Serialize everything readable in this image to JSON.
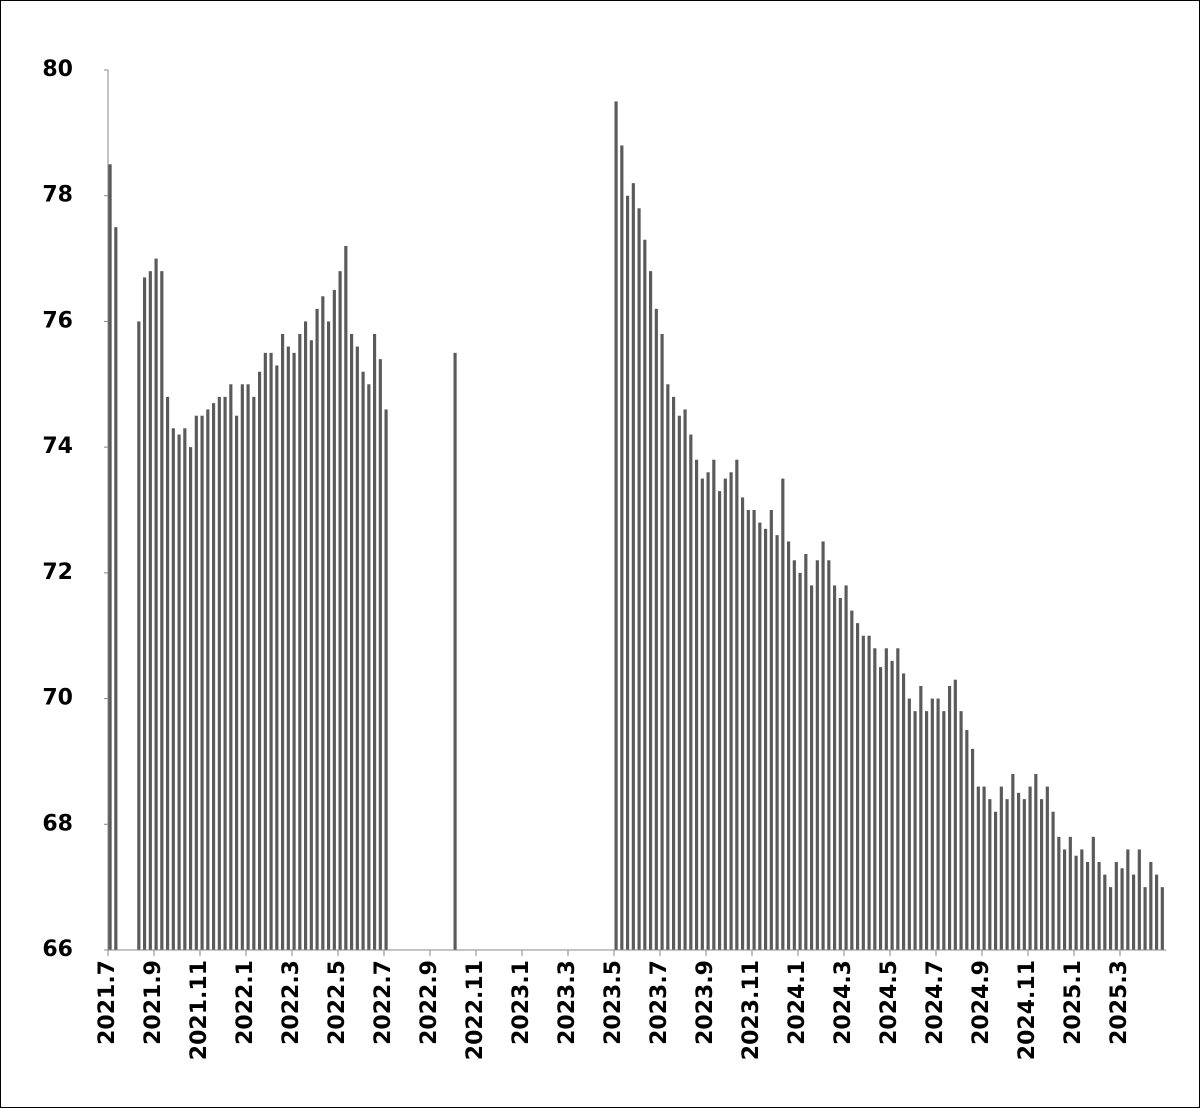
{
  "chart_data": {
    "type": "bar",
    "categories": [
      "2021.7",
      null,
      null,
      null,
      null,
      null,
      null,
      null,
      "2021.9",
      null,
      null,
      null,
      null,
      null,
      null,
      null,
      "2021.11",
      null,
      null,
      null,
      null,
      null,
      null,
      null,
      "2022.1",
      null,
      null,
      null,
      null,
      null,
      null,
      null,
      "2022.3",
      null,
      null,
      null,
      null,
      null,
      null,
      null,
      "2022.5",
      null,
      null,
      null,
      null,
      null,
      null,
      null,
      "2022.7",
      null,
      null,
      null,
      null,
      null,
      null,
      null,
      "2022.9",
      null,
      null,
      null,
      null,
      null,
      null,
      null,
      "2022.11",
      null,
      null,
      null,
      null,
      null,
      null,
      null,
      "2023.1",
      null,
      null,
      null,
      null,
      null,
      null,
      null,
      "2023.3",
      null,
      null,
      null,
      null,
      null,
      null,
      null,
      "2023.5",
      null,
      null,
      null,
      null,
      null,
      null,
      null,
      "2023.7",
      null,
      null,
      null,
      null,
      null,
      null,
      null,
      "2023.9",
      null,
      null,
      null,
      null,
      null,
      null,
      null,
      "2023.11",
      null,
      null,
      null,
      null,
      null,
      null,
      null,
      "2024.1",
      null,
      null,
      null,
      null,
      null,
      null,
      null,
      "2024.3",
      null,
      null,
      null,
      null,
      null,
      null,
      null,
      "2024.5",
      null,
      null,
      null,
      null,
      null,
      null,
      null,
      "2024.7",
      null,
      null,
      null,
      null,
      null,
      null,
      null,
      "2024.9",
      null,
      null,
      null,
      null,
      null,
      null,
      null,
      "2024.11",
      null,
      null,
      null,
      null,
      null,
      null,
      null,
      "2025.1",
      null,
      null,
      null,
      null,
      null,
      null,
      null,
      "2025.3",
      null,
      null,
      null,
      null,
      null,
      null,
      null
    ],
    "values": [
      78.5,
      77.5,
      null,
      null,
      null,
      76.0,
      76.7,
      76.8,
      77.0,
      76.8,
      74.8,
      74.3,
      74.2,
      74.3,
      74.0,
      74.5,
      74.5,
      74.6,
      74.7,
      74.8,
      74.8,
      75.0,
      74.5,
      75.0,
      75.0,
      74.8,
      75.2,
      75.5,
      75.5,
      75.3,
      75.8,
      75.6,
      75.5,
      75.8,
      76.0,
      75.7,
      76.2,
      76.4,
      76.0,
      76.5,
      76.8,
      77.2,
      75.8,
      75.6,
      75.2,
      75.0,
      75.8,
      75.4,
      74.6,
      null,
      null,
      null,
      null,
      null,
      null,
      null,
      null,
      null,
      null,
      null,
      75.5,
      null,
      null,
      null,
      null,
      null,
      null,
      null,
      null,
      null,
      null,
      null,
      null,
      null,
      null,
      null,
      null,
      null,
      null,
      null,
      null,
      null,
      null,
      null,
      null,
      null,
      null,
      null,
      79.5,
      78.8,
      78.0,
      78.2,
      77.8,
      77.3,
      76.8,
      76.2,
      75.8,
      75.0,
      74.8,
      74.5,
      74.6,
      74.2,
      73.8,
      73.5,
      73.6,
      73.8,
      73.3,
      73.5,
      73.6,
      73.8,
      73.2,
      73.0,
      73.0,
      72.8,
      72.7,
      73.0,
      72.6,
      73.5,
      72.5,
      72.2,
      72.0,
      72.3,
      71.8,
      72.2,
      72.5,
      72.2,
      71.8,
      71.6,
      71.8,
      71.4,
      71.2,
      71.0,
      71.0,
      70.8,
      70.5,
      70.8,
      70.6,
      70.8,
      70.4,
      70.0,
      69.8,
      70.2,
      69.8,
      70.0,
      70.0,
      69.8,
      70.2,
      70.3,
      69.8,
      69.5,
      69.2,
      68.6,
      68.6,
      68.4,
      68.2,
      68.6,
      68.4,
      68.8,
      68.5,
      68.4,
      68.6,
      68.8,
      68.4,
      68.6,
      68.2,
      67.8,
      67.6,
      67.8,
      67.5,
      67.6,
      67.4,
      67.8,
      67.4,
      67.2,
      67.0,
      67.4,
      67.3,
      67.6,
      67.2,
      67.6,
      67.0,
      67.4,
      67.2,
      67.0
    ],
    "color": "#5a5a5a",
    "ylim": [
      66,
      80
    ],
    "yticks": [
      66,
      68,
      70,
      72,
      74,
      76,
      78,
      80
    ],
    "grid": false
  }
}
